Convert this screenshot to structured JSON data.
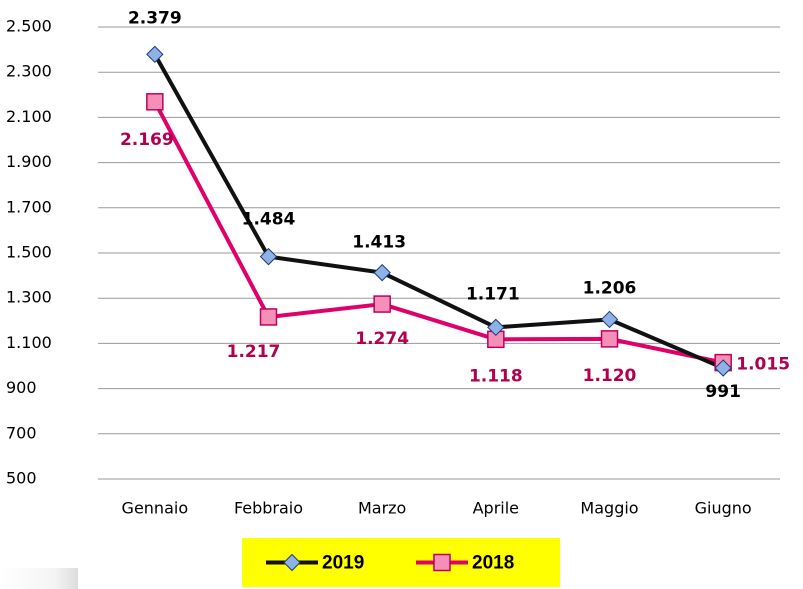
{
  "chart_data": {
    "type": "line",
    "categories": [
      "Gennaio",
      "Febbraio",
      "Marzo",
      "Aprile",
      "Maggio",
      "Giugno"
    ],
    "series": [
      {
        "name": "2019",
        "color": "#111111",
        "marker_color": "#8fb2e6",
        "label_color": "#000000",
        "values": [
          2379,
          1484,
          1413,
          1171,
          1206,
          991
        ],
        "value_labels": [
          "2.379",
          "1.484",
          "1.413",
          "1.171",
          "1.206",
          "991"
        ]
      },
      {
        "name": "2018",
        "color": "#e0006a",
        "marker_color": "#f48fb8",
        "label_color": "#b0004e",
        "values": [
          2169,
          1217,
          1274,
          1118,
          1120,
          1015
        ],
        "value_labels": [
          "2.169",
          "1.217",
          "1.274",
          "1.118",
          "1.120",
          "1.015"
        ]
      }
    ],
    "ylim": [
      500,
      2500
    ],
    "yticks": [
      500,
      700,
      900,
      {
        "value": 1100,
        "label": "1.100"
      },
      {
        "value": 1300,
        "label": "1.300"
      },
      {
        "value": 1500,
        "label": "1.500"
      },
      {
        "value": 1700,
        "label": "1.700"
      },
      {
        "value": 1900,
        "label": "1.900"
      },
      {
        "value": 2100,
        "label": "2.100"
      },
      {
        "value": 2300,
        "label": "2.300"
      },
      {
        "value": 2500,
        "label": "2.500"
      }
    ],
    "grid": true,
    "legend": "bottom",
    "legend_background": "#ffff00"
  }
}
